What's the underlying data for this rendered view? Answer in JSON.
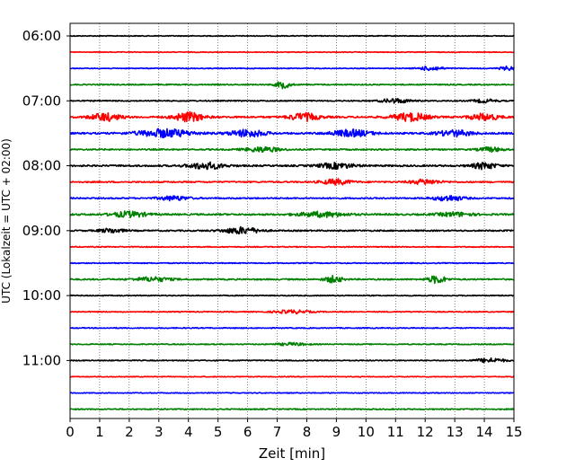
{
  "chart_data": {
    "type": "line",
    "subtype": "helicorder",
    "title": "",
    "xlabel": "Zeit  [min]",
    "ylabel": "UTC (Lokalzeit = UTC + 02:00)",
    "xlim": [
      0,
      15
    ],
    "x_ticks": [
      0,
      1,
      2,
      3,
      4,
      5,
      6,
      7,
      8,
      9,
      10,
      11,
      12,
      13,
      14,
      15
    ],
    "x_tick_labels": [
      "0",
      "1",
      "2",
      "3",
      "4",
      "5",
      "6",
      "7",
      "8",
      "9",
      "10",
      "11",
      "12",
      "13",
      "14",
      "15"
    ],
    "vertical_grid": "dotted",
    "row_interval_minutes": 15,
    "y_tick_labels": [
      "06:00",
      "07:00",
      "08:00",
      "09:00",
      "10:00",
      "11:00"
    ],
    "color_cycle": [
      "#000000",
      "#ff0000",
      "#0000ff",
      "#008000"
    ],
    "rows": [
      {
        "start": "06:00",
        "amplitude": 0.3,
        "bursts": []
      },
      {
        "start": "06:15",
        "amplitude": 0.28,
        "bursts": []
      },
      {
        "start": "06:30",
        "amplitude": 0.3,
        "bursts": [
          {
            "t": 12.2,
            "amp": 1.6,
            "width": 0.4
          },
          {
            "t": 14.8,
            "amp": 1.4,
            "width": 0.3
          }
        ]
      },
      {
        "start": "06:45",
        "amplitude": 0.4,
        "bursts": [
          {
            "t": 7.2,
            "amp": 2.6,
            "width": 0.25
          }
        ]
      },
      {
        "start": "07:00",
        "amplitude": 0.4,
        "bursts": [
          {
            "t": 11.0,
            "amp": 1.6,
            "width": 0.5
          },
          {
            "t": 14.0,
            "amp": 1.2,
            "width": 0.4
          }
        ]
      },
      {
        "start": "07:15",
        "amplitude": 0.6,
        "bursts": [
          {
            "t": 1.2,
            "amp": 2.8,
            "width": 0.5
          },
          {
            "t": 4.0,
            "amp": 3.4,
            "width": 0.5
          },
          {
            "t": 7.9,
            "amp": 2.8,
            "width": 0.5
          },
          {
            "t": 11.5,
            "amp": 3.0,
            "width": 0.6
          },
          {
            "t": 14.0,
            "amp": 2.4,
            "width": 0.5
          }
        ]
      },
      {
        "start": "07:30",
        "amplitude": 0.6,
        "bursts": [
          {
            "t": 3.2,
            "amp": 3.0,
            "width": 0.9
          },
          {
            "t": 6.0,
            "amp": 2.6,
            "width": 0.6
          },
          {
            "t": 9.5,
            "amp": 2.4,
            "width": 0.7
          },
          {
            "t": 13.0,
            "amp": 2.2,
            "width": 0.6
          }
        ]
      },
      {
        "start": "07:45",
        "amplitude": 0.5,
        "bursts": [
          {
            "t": 6.5,
            "amp": 1.8,
            "width": 0.6
          },
          {
            "t": 14.2,
            "amp": 1.6,
            "width": 0.4
          }
        ]
      },
      {
        "start": "08:00",
        "amplitude": 0.6,
        "bursts": [
          {
            "t": 4.6,
            "amp": 2.4,
            "width": 0.6
          },
          {
            "t": 9.0,
            "amp": 2.0,
            "width": 0.6
          },
          {
            "t": 14.0,
            "amp": 2.4,
            "width": 0.4
          }
        ]
      },
      {
        "start": "08:15",
        "amplitude": 0.5,
        "bursts": [
          {
            "t": 9.0,
            "amp": 2.0,
            "width": 0.5
          },
          {
            "t": 12.0,
            "amp": 1.8,
            "width": 0.5
          }
        ]
      },
      {
        "start": "08:30",
        "amplitude": 0.5,
        "bursts": [
          {
            "t": 3.5,
            "amp": 1.6,
            "width": 0.5
          },
          {
            "t": 12.8,
            "amp": 2.0,
            "width": 0.5
          }
        ]
      },
      {
        "start": "08:45",
        "amplitude": 0.6,
        "bursts": [
          {
            "t": 2.0,
            "amp": 2.0,
            "width": 0.6
          },
          {
            "t": 8.5,
            "amp": 1.8,
            "width": 0.8
          },
          {
            "t": 13.0,
            "amp": 1.4,
            "width": 0.6
          }
        ]
      },
      {
        "start": "09:00",
        "amplitude": 0.5,
        "bursts": [
          {
            "t": 1.4,
            "amp": 1.6,
            "width": 0.4
          },
          {
            "t": 5.8,
            "amp": 2.4,
            "width": 0.6
          }
        ]
      },
      {
        "start": "09:15",
        "amplitude": 0.35,
        "bursts": []
      },
      {
        "start": "09:30",
        "amplitude": 0.35,
        "bursts": []
      },
      {
        "start": "09:45",
        "amplitude": 0.5,
        "bursts": [
          {
            "t": 2.8,
            "amp": 1.6,
            "width": 0.6
          },
          {
            "t": 8.9,
            "amp": 2.4,
            "width": 0.3
          },
          {
            "t": 12.4,
            "amp": 2.8,
            "width": 0.3
          }
        ]
      },
      {
        "start": "10:00",
        "amplitude": 0.35,
        "bursts": []
      },
      {
        "start": "10:15",
        "amplitude": 0.35,
        "bursts": [
          {
            "t": 7.5,
            "amp": 1.2,
            "width": 0.6
          }
        ]
      },
      {
        "start": "10:30",
        "amplitude": 0.35,
        "bursts": []
      },
      {
        "start": "10:45",
        "amplitude": 0.35,
        "bursts": [
          {
            "t": 7.5,
            "amp": 1.0,
            "width": 0.5
          }
        ]
      },
      {
        "start": "11:00",
        "amplitude": 0.35,
        "bursts": [
          {
            "t": 14.2,
            "amp": 1.6,
            "width": 0.5
          }
        ]
      },
      {
        "start": "11:15",
        "amplitude": 0.3,
        "bursts": []
      },
      {
        "start": "11:30",
        "amplitude": 0.3,
        "bursts": []
      },
      {
        "start": "11:45",
        "amplitude": 0.4,
        "bursts": []
      }
    ]
  }
}
